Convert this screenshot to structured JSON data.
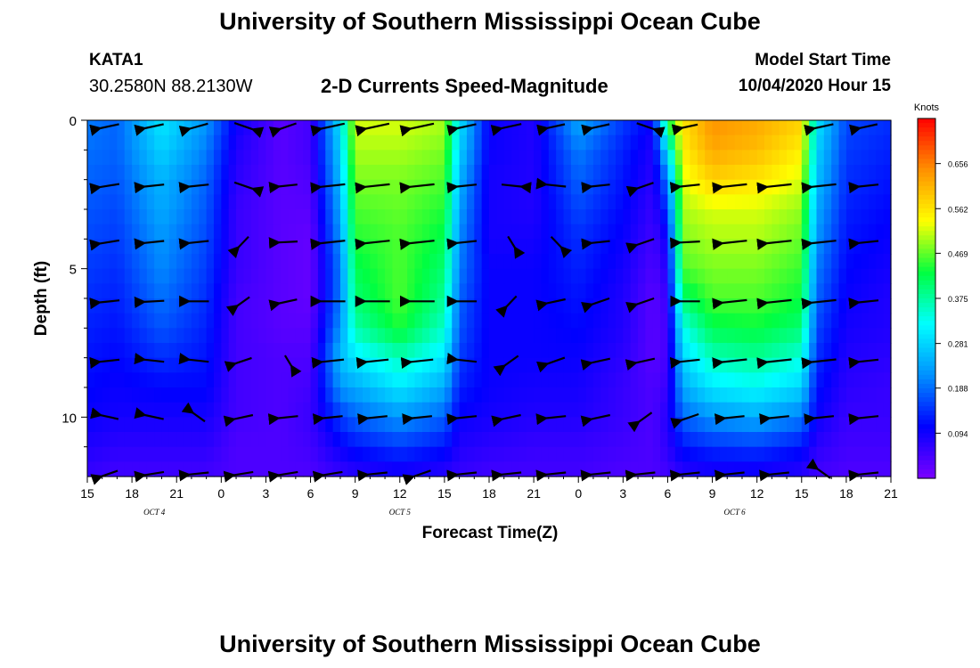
{
  "header": {
    "title": "University of Southern Mississippi Ocean Cube",
    "station_id": "KATA1",
    "coordinates": "30.2580N 88.2130W",
    "subtitle": "2-D Currents Speed-Magnitude",
    "model_start_label": "Model Start Time",
    "model_start_value": "10/04/2020 Hour 15"
  },
  "footer": {
    "title": "University of Southern Mississippi Ocean Cube"
  },
  "chart_data": {
    "type": "heatmap",
    "title": "2-D Currents Speed-Magnitude",
    "xlabel": "Forecast Time(Z)",
    "ylabel": "Depth (ft)",
    "x_unit": "forecast hours from model start (10/04/2020 15Z)",
    "xlim": [
      0,
      54
    ],
    "ylim": [
      0,
      12
    ],
    "y_ticks": [
      0,
      5,
      10
    ],
    "x_ticks": [
      {
        "hour": 0,
        "label": "15"
      },
      {
        "hour": 3,
        "label": "18"
      },
      {
        "hour": 6,
        "label": "21"
      },
      {
        "hour": 9,
        "label": "0"
      },
      {
        "hour": 12,
        "label": "3"
      },
      {
        "hour": 15,
        "label": "6"
      },
      {
        "hour": 18,
        "label": "9"
      },
      {
        "hour": 21,
        "label": "12"
      },
      {
        "hour": 24,
        "label": "15"
      },
      {
        "hour": 27,
        "label": "18"
      },
      {
        "hour": 30,
        "label": "21"
      },
      {
        "hour": 33,
        "label": "0"
      },
      {
        "hour": 36,
        "label": "3"
      },
      {
        "hour": 39,
        "label": "6"
      },
      {
        "hour": 42,
        "label": "9"
      },
      {
        "hour": 45,
        "label": "12"
      },
      {
        "hour": 48,
        "label": "15"
      },
      {
        "hour": 51,
        "label": "18"
      },
      {
        "hour": 54,
        "label": "21"
      }
    ],
    "date_labels": [
      {
        "hour": 4.5,
        "label": "OCT 4"
      },
      {
        "hour": 21,
        "label": "OCT 5"
      },
      {
        "hour": 43.5,
        "label": "OCT 6"
      }
    ],
    "colorbar": {
      "unit": "Knots",
      "min": 0.0,
      "max": 0.75,
      "ticks": [
        0.094,
        0.188,
        0.281,
        0.375,
        0.469,
        0.562,
        0.656
      ],
      "colors": [
        "#7a00ff",
        "#0000ff",
        "#0090ff",
        "#00ffff",
        "#00ff40",
        "#ffff00",
        "#ff9000",
        "#ff0000"
      ]
    },
    "speed_profiles": {
      "depths_ft": [
        0,
        1,
        2,
        3,
        4,
        5,
        6,
        7,
        8,
        9,
        10,
        11,
        12
      ],
      "series": [
        {
          "hour": 0,
          "values": [
            0.2,
            0.19,
            0.18,
            0.17,
            0.16,
            0.15,
            0.14,
            0.13,
            0.12,
            0.11,
            0.1,
            0.08,
            0.06
          ]
        },
        {
          "hour": 2,
          "values": [
            0.18,
            0.18,
            0.17,
            0.16,
            0.15,
            0.14,
            0.13,
            0.12,
            0.11,
            0.1,
            0.09,
            0.07,
            0.05
          ]
        },
        {
          "hour": 5,
          "values": [
            0.3,
            0.28,
            0.25,
            0.24,
            0.22,
            0.21,
            0.19,
            0.17,
            0.14,
            0.11,
            0.09,
            0.07,
            0.05
          ]
        },
        {
          "hour": 8,
          "values": [
            0.22,
            0.2,
            0.18,
            0.17,
            0.16,
            0.15,
            0.14,
            0.13,
            0.12,
            0.11,
            0.09,
            0.07,
            0.05
          ]
        },
        {
          "hour": 10,
          "values": [
            0.1,
            0.08,
            0.07,
            0.06,
            0.06,
            0.06,
            0.05,
            0.05,
            0.05,
            0.05,
            0.05,
            0.04,
            0.04
          ]
        },
        {
          "hour": 13,
          "values": [
            0.03,
            0.03,
            0.03,
            0.03,
            0.03,
            0.03,
            0.03,
            0.03,
            0.04,
            0.04,
            0.04,
            0.04,
            0.04
          ]
        },
        {
          "hour": 15,
          "values": [
            0.05,
            0.05,
            0.04,
            0.03,
            0.02,
            0.02,
            0.02,
            0.03,
            0.04,
            0.05,
            0.06,
            0.05,
            0.04
          ]
        },
        {
          "hour": 17,
          "values": [
            0.3,
            0.28,
            0.26,
            0.24,
            0.22,
            0.2,
            0.2,
            0.22,
            0.26,
            0.22,
            0.15,
            0.1,
            0.06
          ]
        },
        {
          "hour": 18,
          "values": [
            0.52,
            0.5,
            0.48,
            0.46,
            0.44,
            0.42,
            0.4,
            0.37,
            0.3,
            0.24,
            0.18,
            0.12,
            0.07
          ]
        },
        {
          "hour": 21,
          "values": [
            0.52,
            0.5,
            0.48,
            0.47,
            0.46,
            0.46,
            0.46,
            0.44,
            0.36,
            0.3,
            0.22,
            0.15,
            0.08
          ]
        },
        {
          "hour": 24,
          "values": [
            0.5,
            0.48,
            0.46,
            0.44,
            0.42,
            0.4,
            0.38,
            0.35,
            0.3,
            0.24,
            0.18,
            0.12,
            0.07
          ]
        },
        {
          "hour": 25,
          "values": [
            0.3,
            0.28,
            0.25,
            0.23,
            0.21,
            0.2,
            0.18,
            0.17,
            0.15,
            0.13,
            0.1,
            0.08,
            0.06
          ]
        },
        {
          "hour": 27,
          "values": [
            0.1,
            0.1,
            0.09,
            0.09,
            0.09,
            0.1,
            0.1,
            0.1,
            0.1,
            0.1,
            0.09,
            0.07,
            0.05
          ]
        },
        {
          "hour": 30,
          "values": [
            0.08,
            0.08,
            0.08,
            0.08,
            0.09,
            0.1,
            0.1,
            0.1,
            0.1,
            0.09,
            0.08,
            0.06,
            0.05
          ]
        },
        {
          "hour": 33,
          "values": [
            0.24,
            0.2,
            0.18,
            0.16,
            0.14,
            0.13,
            0.12,
            0.11,
            0.1,
            0.09,
            0.08,
            0.06,
            0.05
          ]
        },
        {
          "hour": 36,
          "values": [
            0.15,
            0.13,
            0.12,
            0.11,
            0.1,
            0.09,
            0.08,
            0.08,
            0.07,
            0.06,
            0.06,
            0.05,
            0.04
          ]
        },
        {
          "hour": 38,
          "values": [
            0.1,
            0.08,
            0.07,
            0.06,
            0.05,
            0.04,
            0.03,
            0.03,
            0.03,
            0.04,
            0.04,
            0.04,
            0.04
          ]
        },
        {
          "hour": 39,
          "values": [
            0.45,
            0.3,
            0.2,
            0.15,
            0.1,
            0.08,
            0.06,
            0.05,
            0.05,
            0.06,
            0.08,
            0.07,
            0.05
          ]
        },
        {
          "hour": 40,
          "values": [
            0.56,
            0.55,
            0.52,
            0.5,
            0.48,
            0.46,
            0.4,
            0.33,
            0.28,
            0.24,
            0.18,
            0.12,
            0.07
          ]
        },
        {
          "hour": 42,
          "values": [
            0.64,
            0.62,
            0.58,
            0.52,
            0.5,
            0.48,
            0.46,
            0.42,
            0.36,
            0.3,
            0.22,
            0.14,
            0.08
          ]
        },
        {
          "hour": 45,
          "values": [
            0.62,
            0.6,
            0.56,
            0.52,
            0.5,
            0.48,
            0.46,
            0.43,
            0.38,
            0.32,
            0.24,
            0.15,
            0.08
          ]
        },
        {
          "hour": 48,
          "values": [
            0.58,
            0.55,
            0.52,
            0.49,
            0.47,
            0.45,
            0.43,
            0.4,
            0.34,
            0.28,
            0.2,
            0.12,
            0.07
          ]
        },
        {
          "hour": 49,
          "values": [
            0.3,
            0.28,
            0.26,
            0.24,
            0.22,
            0.2,
            0.18,
            0.16,
            0.14,
            0.12,
            0.1,
            0.07,
            0.05
          ]
        },
        {
          "hour": 51,
          "values": [
            0.16,
            0.15,
            0.14,
            0.13,
            0.12,
            0.11,
            0.1,
            0.09,
            0.08,
            0.07,
            0.06,
            0.05,
            0.04
          ]
        },
        {
          "hour": 54,
          "values": [
            0.14,
            0.13,
            0.12,
            0.11,
            0.1,
            0.09,
            0.08,
            0.08,
            0.07,
            0.06,
            0.06,
            0.05,
            0.04
          ]
        }
      ]
    },
    "current_vectors": {
      "description": "arrows showing current direction (bearing, degrees from north, toward) and relative speed",
      "times": [
        1.5,
        4.5,
        7.5,
        10.5,
        13.5,
        16.5,
        19.5,
        22.5,
        25.5,
        28.5,
        31.5,
        34.5,
        37.5,
        40.5,
        43.5,
        46.5,
        49.5,
        52.5
      ],
      "depths_ft": [
        0.2,
        2.2,
        4.1,
        6.1,
        8.1,
        10.0,
        11.9
      ],
      "bearings_deg": [
        [
          70,
          70,
          65,
          300,
          60,
          70,
          70,
          70,
          70,
          70,
          70,
          70,
          300,
          70,
          70,
          70,
          70,
          70
        ],
        [
          75,
          80,
          80,
          300,
          80,
          80,
          80,
          80,
          80,
          280,
          100,
          80,
          60,
          80,
          80,
          80,
          80,
          80
        ],
        [
          75,
          80,
          80,
          30,
          85,
          80,
          80,
          80,
          80,
          340,
          330,
          80,
          60,
          85,
          80,
          80,
          80,
          80
        ],
        [
          80,
          85,
          90,
          40,
          70,
          90,
          90,
          90,
          90,
          30,
          70,
          60,
          60,
          90,
          80,
          80,
          80,
          80
        ],
        [
          80,
          100,
          100,
          60,
          340,
          80,
          80,
          80,
          100,
          40,
          60,
          70,
          70,
          80,
          80,
          80,
          80,
          80
        ],
        [
          110,
          110,
          140,
          70,
          80,
          80,
          80,
          80,
          80,
          70,
          80,
          70,
          40,
          60,
          80,
          80,
          80,
          80
        ],
        [
          60,
          75,
          80,
          75,
          75,
          75,
          80,
          60,
          80,
          80,
          80,
          80,
          80,
          80,
          80,
          80,
          140,
          80
        ]
      ],
      "relative_speed": [
        [
          0.6,
          0.6,
          0.6,
          0.7,
          0.5,
          1.0,
          1.0,
          1.0,
          0.6,
          0.7,
          0.5,
          0.5,
          0.6,
          0.3,
          0.0,
          0.0,
          0.6,
          0.5
        ],
        [
          0.6,
          0.6,
          0.6,
          0.7,
          0.5,
          1.0,
          1.0,
          1.0,
          0.6,
          0.6,
          0.6,
          0.5,
          0.5,
          0.6,
          1.0,
          1.0,
          1.0,
          0.6
        ],
        [
          0.6,
          0.6,
          0.6,
          0.6,
          0.5,
          1.0,
          1.0,
          1.0,
          0.6,
          0.6,
          0.6,
          0.5,
          0.6,
          0.6,
          1.0,
          1.0,
          1.0,
          0.6
        ],
        [
          0.6,
          0.6,
          0.6,
          0.5,
          0.5,
          1.0,
          1.0,
          1.0,
          0.6,
          0.6,
          0.6,
          0.6,
          0.6,
          0.6,
          1.0,
          1.0,
          1.0,
          0.6
        ],
        [
          0.6,
          0.6,
          0.6,
          0.5,
          0.5,
          0.8,
          0.8,
          0.8,
          0.6,
          0.7,
          0.6,
          0.6,
          0.6,
          0.6,
          1.0,
          1.0,
          1.0,
          0.6
        ],
        [
          0.5,
          0.6,
          0.5,
          0.6,
          0.6,
          0.6,
          0.6,
          0.6,
          0.6,
          0.6,
          0.6,
          0.6,
          0.6,
          0.6,
          0.6,
          0.6,
          0.6,
          0.6
        ],
        [
          0.5,
          0.6,
          0.6,
          0.6,
          0.6,
          0.6,
          0.6,
          0.6,
          0.6,
          0.6,
          0.6,
          0.6,
          0.6,
          0.6,
          0.6,
          0.6,
          0.6,
          0.6
        ]
      ]
    }
  }
}
